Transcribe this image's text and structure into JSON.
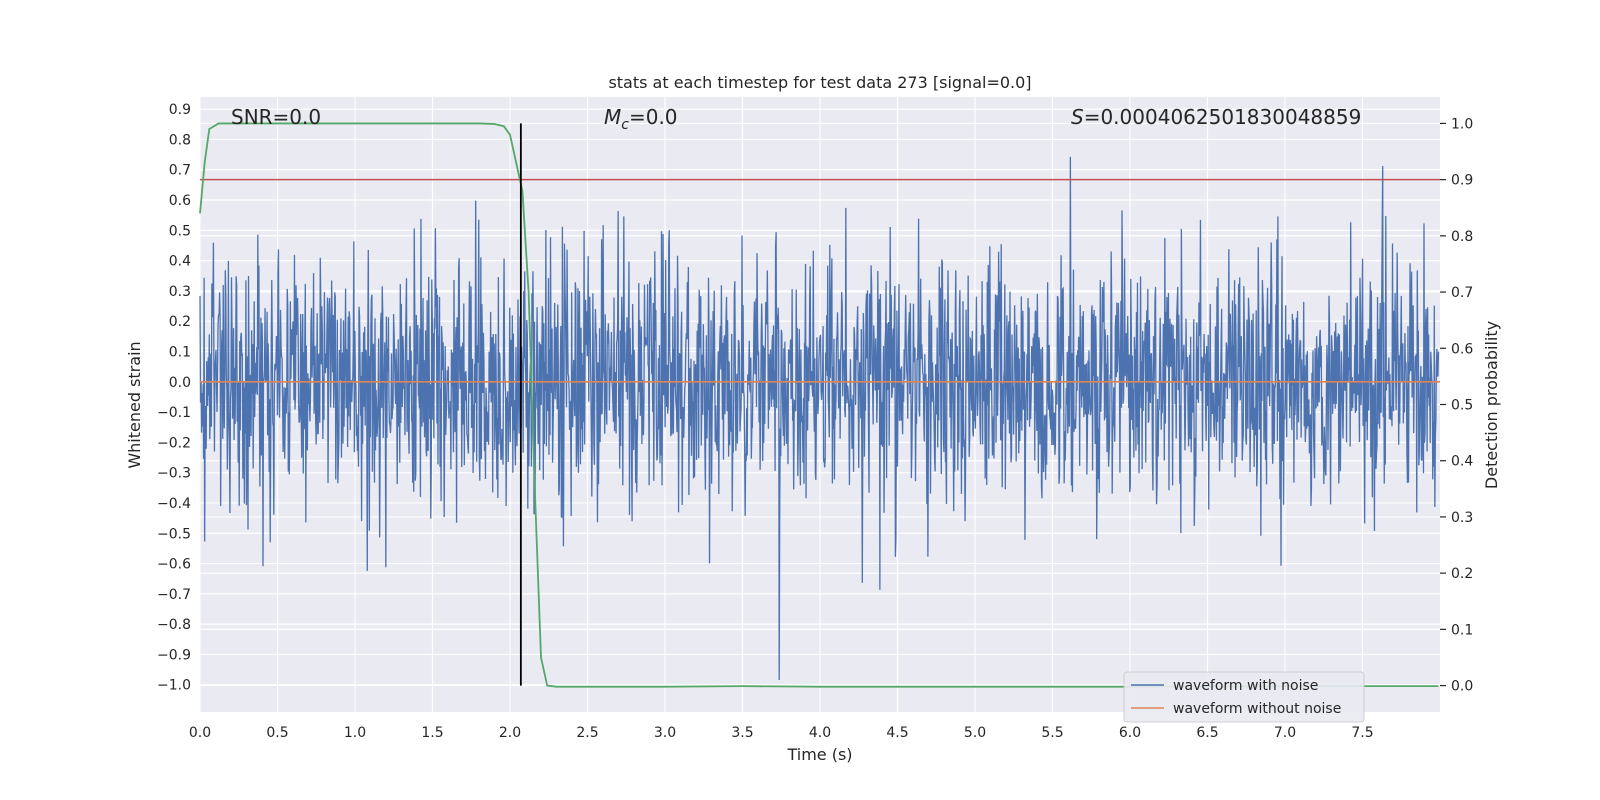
{
  "chart_data": {
    "type": "line",
    "title": "stats at each timestep for test data 273 [signal=0.0]",
    "xlabel": "Time (s)",
    "ylabel": "Whitened strain",
    "y2label": "Detection probability",
    "xlim": [
      0.0,
      8.0
    ],
    "ylim": [
      -1.09,
      0.94
    ],
    "y2lim": [
      -0.047,
      1.047
    ],
    "x_ticks": [
      0.0,
      0.5,
      1.0,
      1.5,
      2.0,
      2.5,
      3.0,
      3.5,
      4.0,
      4.5,
      5.0,
      5.5,
      6.0,
      6.5,
      7.0,
      7.5
    ],
    "x_tick_labels": [
      "0.0",
      "0.5",
      "1.0",
      "1.5",
      "2.0",
      "2.5",
      "3.0",
      "3.5",
      "4.0",
      "4.5",
      "5.0",
      "5.5",
      "6.0",
      "6.5",
      "7.0",
      "7.5"
    ],
    "y_ticks": [
      0.9,
      0.8,
      0.7,
      0.6,
      0.5,
      0.4,
      0.3,
      0.2,
      0.1,
      0.0,
      -0.1,
      -0.2,
      -0.3,
      -0.4,
      -0.5,
      -0.6,
      -0.7,
      -0.8,
      -0.9,
      -1.0
    ],
    "y_tick_labels": [
      "0.9",
      "0.8",
      "0.7",
      "0.6",
      "0.5",
      "0.4",
      "0.3",
      "0.2",
      "0.1",
      "0.0",
      "−0.1",
      "−0.2",
      "−0.3",
      "−0.4",
      "−0.5",
      "−0.6",
      "−0.7",
      "−0.8",
      "−0.9",
      "−1.0"
    ],
    "y2_ticks": [
      1.0,
      0.9,
      0.8,
      0.7,
      0.6,
      0.5,
      0.4,
      0.3,
      0.2,
      0.1,
      0.0
    ],
    "y2_tick_labels": [
      "1.0",
      "0.9",
      "0.8",
      "0.7",
      "0.6",
      "0.5",
      "0.4",
      "0.3",
      "0.2",
      "0.1",
      "0.0"
    ],
    "annotations": {
      "snr": "SNR=0.0",
      "mc_symbol": "M",
      "mc_sub": "c",
      "mc_value": "=0.0",
      "s_symbol": "S",
      "s_value": "=0.0004062501830048859"
    },
    "legend": {
      "placement": "lower-right",
      "entries": [
        "waveform with noise",
        "waveform without noise"
      ]
    },
    "series": [
      {
        "name": "waveform with noise",
        "color": "#4c72b0",
        "axis": "left",
        "description_type": "noise",
        "typical_envelope": [
          -0.45,
          0.5
        ],
        "extreme_range": [
          -1.0,
          0.85
        ],
        "x_range": [
          0.0,
          7.99
        ]
      },
      {
        "name": "waveform without noise",
        "color": "#dd8452",
        "axis": "left",
        "x": [
          0.0,
          8.0
        ],
        "y": [
          0.0,
          0.0
        ]
      },
      {
        "color": "#55a868",
        "axis": "right",
        "x": [
          0.0,
          0.03,
          0.06,
          0.12,
          0.5,
          1.0,
          1.5,
          1.8,
          1.9,
          1.96,
          2.0,
          2.04,
          2.08,
          2.12,
          2.16,
          2.2,
          2.24,
          2.3,
          2.5,
          3.0,
          3.5,
          4.0,
          5.0,
          6.0,
          7.0,
          7.99
        ],
        "y": [
          0.84,
          0.93,
          0.99,
          1.0,
          1.0,
          1.0,
          1.0,
          1.0,
          0.999,
          0.995,
          0.98,
          0.93,
          0.88,
          0.7,
          0.35,
          0.05,
          0.0,
          -0.002,
          -0.002,
          -0.002,
          -0.001,
          -0.002,
          -0.002,
          -0.002,
          -0.001,
          -0.001
        ]
      }
    ],
    "threshold": {
      "value": 0.9,
      "axis": "right",
      "color": "#c44e52"
    },
    "marker_time": {
      "value": 2.07,
      "color": "#000000",
      "y2_range": [
        0.0,
        1.0
      ]
    },
    "colors": {
      "background": "#eaeaf2",
      "grid": "#ffffff"
    }
  }
}
